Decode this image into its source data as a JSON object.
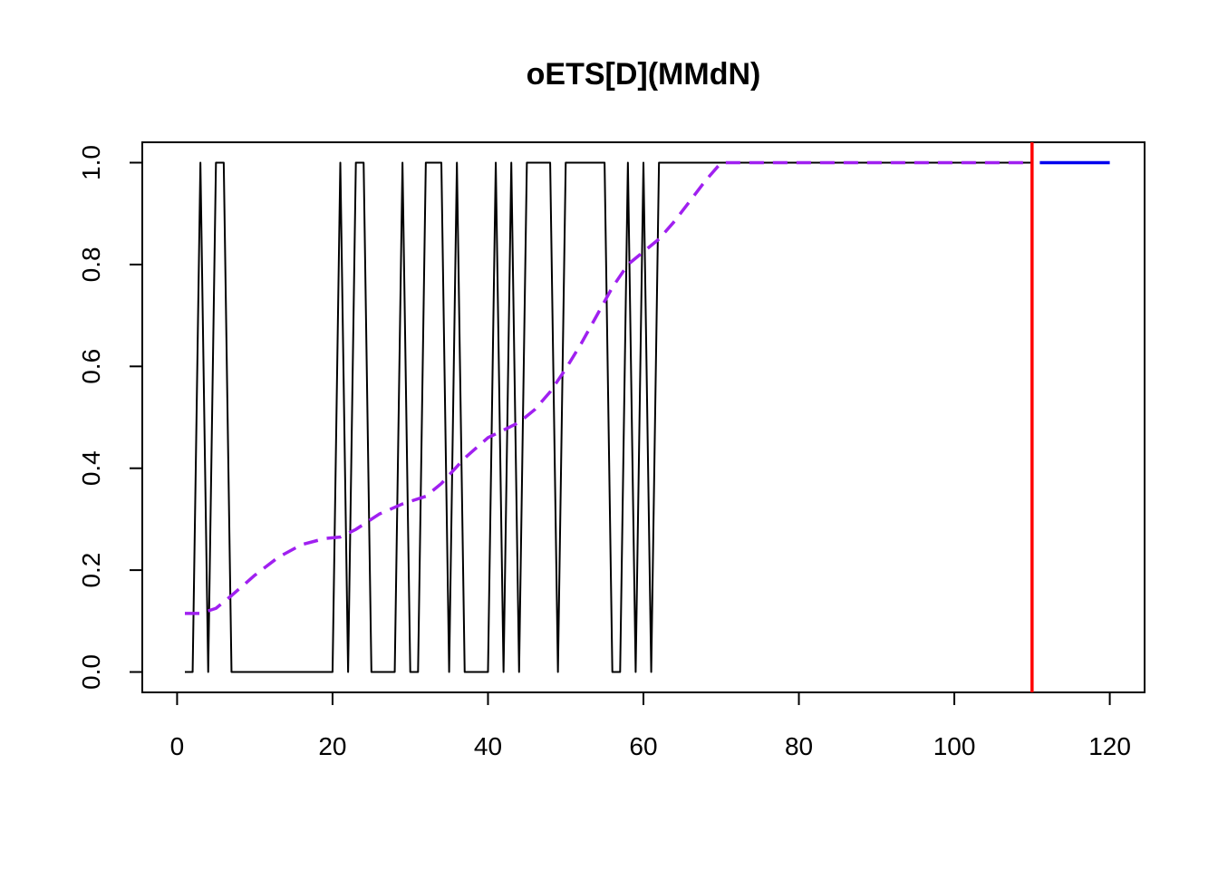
{
  "chart_data": {
    "type": "line",
    "title": "oETS[D](MMdN)",
    "xlabel": "",
    "ylabel": "",
    "xlim": [
      -4.48,
      124.48
    ],
    "ylim": [
      -0.04,
      1.04
    ],
    "x_ticks": [
      0,
      20,
      40,
      60,
      80,
      100,
      120
    ],
    "x_tick_labels": [
      "0",
      "20",
      "40",
      "60",
      "80",
      "100",
      "120"
    ],
    "y_ticks": [
      0,
      0.2,
      0.4,
      0.6,
      0.8,
      1
    ],
    "y_tick_labels": [
      "0.0",
      "0.2",
      "0.4",
      "0.6",
      "0.8",
      "1.0"
    ],
    "grid": false,
    "legend": "none",
    "series": [
      {
        "style": "solid",
        "color": "#000000",
        "x": [
          1,
          2,
          3,
          4,
          5,
          6,
          7,
          8,
          9,
          10,
          11,
          12,
          13,
          14,
          15,
          16,
          17,
          18,
          19,
          20,
          21,
          22,
          23,
          24,
          25,
          26,
          27,
          28,
          29,
          30,
          31,
          32,
          33,
          34,
          35,
          36,
          37,
          38,
          39,
          40,
          41,
          42,
          43,
          44,
          45,
          46,
          47,
          48,
          49,
          50,
          51,
          52,
          53,
          54,
          55,
          56,
          57,
          58,
          59,
          60,
          61,
          62,
          63,
          64,
          65,
          66,
          67,
          68,
          69,
          70,
          71,
          72,
          73,
          74,
          75,
          76,
          77,
          78,
          79,
          80,
          81,
          82,
          83,
          84,
          85,
          86,
          87,
          88,
          89,
          90,
          91,
          92,
          93,
          94,
          95,
          96,
          97,
          98,
          99,
          100,
          101,
          102,
          103,
          104,
          105,
          106,
          107,
          108,
          109,
          110
        ],
        "y": [
          0,
          0,
          1,
          0,
          1,
          1,
          0,
          0,
          0,
          0,
          0,
          0,
          0,
          0,
          0,
          0,
          0,
          0,
          0,
          0,
          1,
          0,
          1,
          1,
          0,
          0,
          0,
          0,
          1,
          0,
          0,
          1,
          1,
          1,
          0,
          1,
          0,
          0,
          0,
          0,
          1,
          0,
          1,
          0,
          1,
          1,
          1,
          1,
          0,
          1,
          1,
          1,
          1,
          1,
          1,
          0,
          0,
          1,
          0,
          1,
          0,
          1,
          1,
          1,
          1,
          1,
          1,
          1,
          1,
          1,
          1,
          1,
          1,
          1,
          1,
          1,
          1,
          1,
          1,
          1,
          1,
          1,
          1,
          1,
          1,
          1,
          1,
          1,
          1,
          1,
          1,
          1,
          1,
          1,
          1,
          1,
          1,
          1,
          1,
          1,
          1,
          1,
          1,
          1,
          1,
          1,
          1,
          1,
          1,
          1
        ]
      },
      {
        "style": "dashed",
        "color": "#a020f0",
        "x": [
          1,
          3,
          5,
          7,
          10,
          13,
          16,
          19,
          21,
          23,
          26,
          29,
          32,
          34,
          37,
          40,
          42,
          44,
          46,
          48,
          50,
          52,
          54,
          56,
          58,
          60,
          62,
          64,
          66,
          68,
          70,
          80,
          90,
          100,
          110
        ],
        "y": [
          0.115,
          0.115,
          0.125,
          0.15,
          0.19,
          0.225,
          0.25,
          0.262,
          0.265,
          0.28,
          0.31,
          0.33,
          0.345,
          0.37,
          0.42,
          0.46,
          0.475,
          0.49,
          0.515,
          0.55,
          0.595,
          0.645,
          0.7,
          0.755,
          0.8,
          0.825,
          0.85,
          0.885,
          0.925,
          0.965,
          1.0,
          1.0,
          1.0,
          1.0,
          1.0
        ]
      },
      {
        "style": "solid",
        "color": "#0000ee",
        "x": [
          111,
          120
        ],
        "y": [
          1,
          1
        ]
      }
    ],
    "vertical_lines": [
      {
        "x": 110,
        "color": "#ff0000"
      }
    ]
  }
}
